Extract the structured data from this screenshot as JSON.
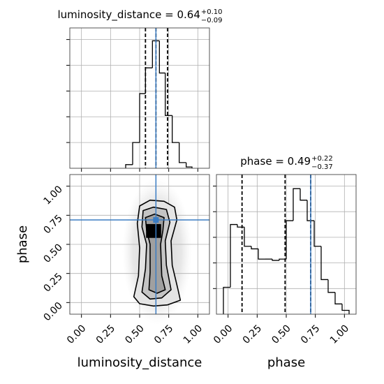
{
  "chart_data": [
    {
      "type": "histogram",
      "title": "luminosity_distance = 0.64",
      "title_upper": "+0.10",
      "title_lower": "−0.09",
      "bins": [
        0.38,
        0.44,
        0.5,
        0.55,
        0.61,
        0.67,
        0.72,
        0.78,
        0.84,
        0.9,
        0.95
      ],
      "counts": [
        0.14,
        1.0,
        2.9,
        3.9,
        4.95,
        3.7,
        2.05,
        1.0,
        0.22,
        0.05
      ],
      "quantiles": [
        0.55,
        0.64,
        0.74
      ],
      "truth": 0.64,
      "color": "#000000",
      "truth_color": "#3b7dc4",
      "xlim": [
        -0.1,
        1.1
      ],
      "ylim": [
        0,
        5.45
      ],
      "xticks": [
        0,
        0.25,
        0.5,
        0.75,
        1
      ],
      "yticks": [
        1,
        2,
        3,
        4,
        5
      ],
      "grid": true
    },
    {
      "type": "contour",
      "xlabel": "luminosity_distance",
      "ylabel": "phase",
      "xlim": [
        -0.1,
        1.1
      ],
      "ylim": [
        -0.1,
        1.1
      ],
      "xticks": [
        {
          "value": 0,
          "label": "0.00"
        },
        {
          "value": 0.25,
          "label": "0.25"
        },
        {
          "value": 0.5,
          "label": "0.50"
        },
        {
          "value": 0.75,
          "label": "0.75"
        },
        {
          "value": 1,
          "label": "1.00"
        }
      ],
      "yticks": [
        {
          "value": 0,
          "label": "0.00"
        },
        {
          "value": 0.25,
          "label": "0.25"
        },
        {
          "value": 0.5,
          "label": "0.50"
        },
        {
          "value": 0.75,
          "label": "0.75"
        },
        {
          "value": 1,
          "label": "1.00"
        }
      ],
      "truth_x": 0.64,
      "truth_y": 0.71,
      "truth_color": "#3b7dc4",
      "grid": true,
      "contours": [
        {
          "fill": "#e4e4e4",
          "x": [
            0.5,
            0.59,
            0.71,
            0.8,
            0.82,
            0.77,
            0.78,
            0.83,
            0.85,
            0.74,
            0.62,
            0.5,
            0.45,
            0.49,
            0.5,
            0.48
          ],
          "y": [
            0.83,
            0.88,
            0.87,
            0.82,
            0.71,
            0.53,
            0.32,
            0.11,
            0.02,
            -0.02,
            -0.03,
            -0.01,
            0.05,
            0.23,
            0.47,
            0.68
          ]
        },
        {
          "fill": "#c4c4c4",
          "x": [
            0.53,
            0.62,
            0.73,
            0.76,
            0.72,
            0.73,
            0.77,
            0.69,
            0.59,
            0.52,
            0.55,
            0.56,
            0.52
          ],
          "y": [
            0.79,
            0.82,
            0.8,
            0.69,
            0.53,
            0.32,
            0.11,
            0.04,
            0.03,
            0.09,
            0.29,
            0.5,
            0.65
          ]
        },
        {
          "fill": "#a0a0a0",
          "x": [
            0.55,
            0.63,
            0.71,
            0.7,
            0.68,
            0.69,
            0.72,
            0.65,
            0.58,
            0.59,
            0.59,
            0.56
          ],
          "y": [
            0.73,
            0.76,
            0.73,
            0.62,
            0.5,
            0.23,
            0.11,
            0.08,
            0.11,
            0.26,
            0.5,
            0.62
          ]
        },
        {
          "fill": "#000000",
          "x": [
            0.56,
            0.68,
            0.68,
            0.56
          ],
          "y": [
            0.67,
            0.67,
            0.56,
            0.56
          ]
        }
      ]
    },
    {
      "type": "histogram",
      "title": "phase = 0.49",
      "title_upper": "+0.22",
      "title_lower": "−0.37",
      "xlabel": "phase",
      "bins": [
        -0.04,
        0.02,
        0.08,
        0.14,
        0.2,
        0.26,
        0.32,
        0.38,
        0.44,
        0.5,
        0.56,
        0.62,
        0.68,
        0.74,
        0.8,
        0.86,
        0.92,
        0.98,
        1.04
      ],
      "counts": [
        1.05,
        3.5,
        3.4,
        2.65,
        2.55,
        2.15,
        2.15,
        2.1,
        2.15,
        3.65,
        4.9,
        4.45,
        3.65,
        2.65,
        1.35,
        0.85,
        0.4,
        0.15
      ],
      "quantiles": [
        0.12,
        0.49,
        0.71
      ],
      "truth": 0.71,
      "color": "#000000",
      "truth_color": "#3b7dc4",
      "xlim": [
        -0.1,
        1.1
      ],
      "ylim": [
        0,
        5.45
      ],
      "xticks": [
        {
          "value": 0,
          "label": "0.00"
        },
        {
          "value": 0.25,
          "label": "0.25"
        },
        {
          "value": 0.5,
          "label": "0.50"
        },
        {
          "value": 0.75,
          "label": "0.75"
        },
        {
          "value": 1,
          "label": "1.00"
        }
      ],
      "yticks": [
        1,
        2,
        3,
        4,
        5
      ],
      "grid": true
    }
  ]
}
